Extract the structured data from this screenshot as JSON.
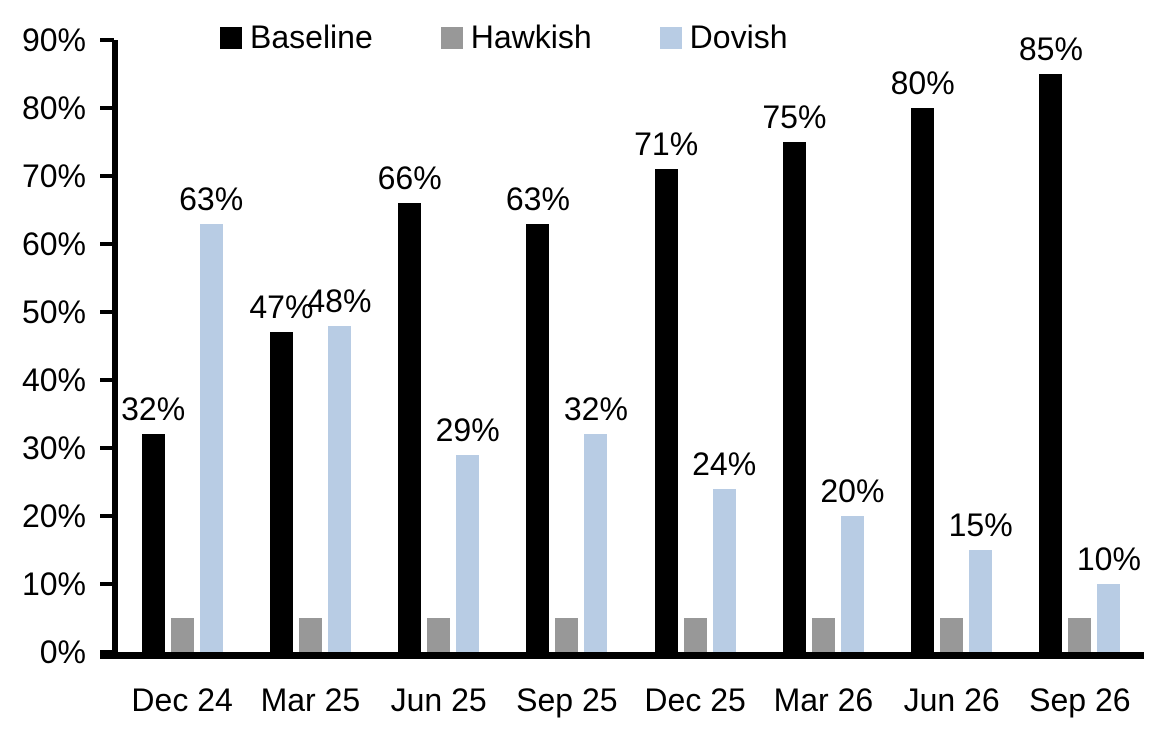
{
  "chart_data": {
    "type": "bar",
    "title": "",
    "categories": [
      "Dec 24",
      "Mar 25",
      "Jun 25",
      "Sep 25",
      "Dec 25",
      "Mar 26",
      "Jun 26",
      "Sep 26"
    ],
    "series": [
      {
        "name": "Baseline",
        "color": "#000000",
        "values": [
          32,
          47,
          66,
          63,
          71,
          75,
          80,
          85
        ],
        "data_labels": true
      },
      {
        "name": "Hawkish",
        "color": "#989898",
        "values": [
          5,
          5,
          5,
          5,
          5,
          5,
          5,
          5
        ],
        "data_labels": false
      },
      {
        "name": "Dovish",
        "color": "#B8CCE4",
        "values": [
          63,
          48,
          29,
          32,
          24,
          20,
          15,
          10
        ],
        "data_labels": true
      }
    ],
    "label_format": "{value}%",
    "ylim": [
      0,
      90
    ],
    "yticks": [
      0,
      10,
      20,
      30,
      40,
      50,
      60,
      70,
      80,
      90
    ],
    "ytick_format": "{value}%",
    "grid": false,
    "legend_position": "top",
    "axis_color": "#000000",
    "background_color": "#ffffff"
  }
}
